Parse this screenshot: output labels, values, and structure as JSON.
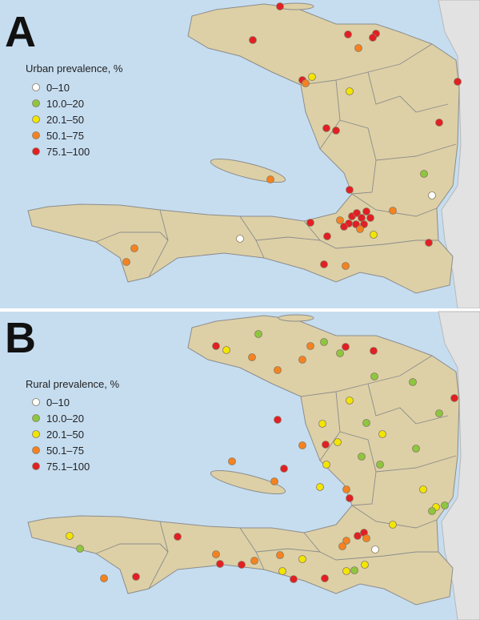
{
  "panels": [
    {
      "label": "A",
      "legend": {
        "title": "Urban prevalence, %",
        "items": [
          "0–10",
          "10.0–20",
          "20.1–50",
          "50.1–75",
          "75.1–100"
        ]
      }
    },
    {
      "label": "B",
      "legend": {
        "title": "Rural prevalence, %",
        "items": [
          "0–10",
          "10.0–20",
          "20.1–50",
          "50.1–75",
          "75.1–100"
        ]
      }
    }
  ]
}
